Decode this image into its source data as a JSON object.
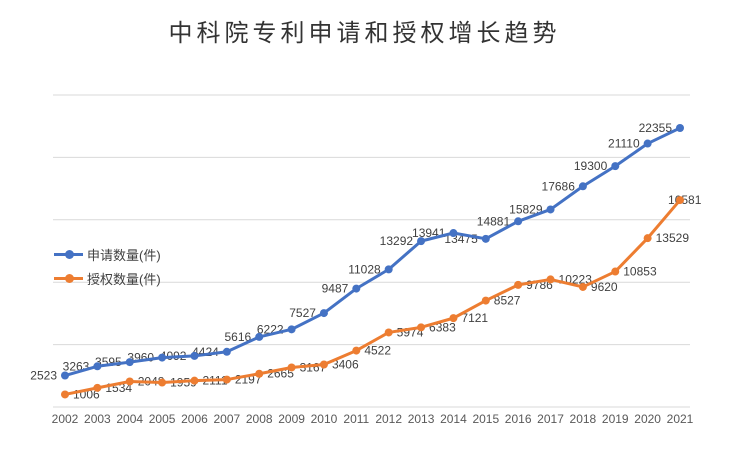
{
  "chart_data": {
    "type": "line",
    "title": "中科院专利申请和授权增长趋势",
    "categories": [
      "2002",
      "2003",
      "2004",
      "2005",
      "2006",
      "2007",
      "2008",
      "2009",
      "2010",
      "2011",
      "2012",
      "2013",
      "2014",
      "2015",
      "2016",
      "2017",
      "2018",
      "2019",
      "2020",
      "2021"
    ],
    "series": [
      {
        "name": "申请数量(件)",
        "color": "#4472C4",
        "marker": "circle",
        "label_position": "left",
        "values": [
          2523,
          3263,
          3595,
          3960,
          4092,
          4424,
          5616,
          6222,
          7527,
          9487,
          11028,
          13292,
          13941,
          13475,
          14881,
          15829,
          17686,
          19300,
          21110,
          22355
        ]
      },
      {
        "name": "授权数量(件)",
        "color": "#ED7D31",
        "marker": "circle",
        "label_position": "right",
        "values": [
          1006,
          1534,
          2048,
          1959,
          2111,
          2197,
          2665,
          3167,
          3406,
          4522,
          5974,
          6383,
          7121,
          8527,
          9786,
          10223,
          9620,
          10853,
          13529,
          16581
        ]
      }
    ],
    "ylim": [
      0,
      25000
    ],
    "y_step": 5000,
    "grid": true,
    "data_labels": true,
    "legend_position": "middle-left",
    "xlabel": "",
    "ylabel": "",
    "colors": {
      "grid": "#D9D9D9",
      "axis_label": "#595959",
      "data_label": "#404040",
      "title": "#333333",
      "background": "#FFFFFF"
    }
  }
}
